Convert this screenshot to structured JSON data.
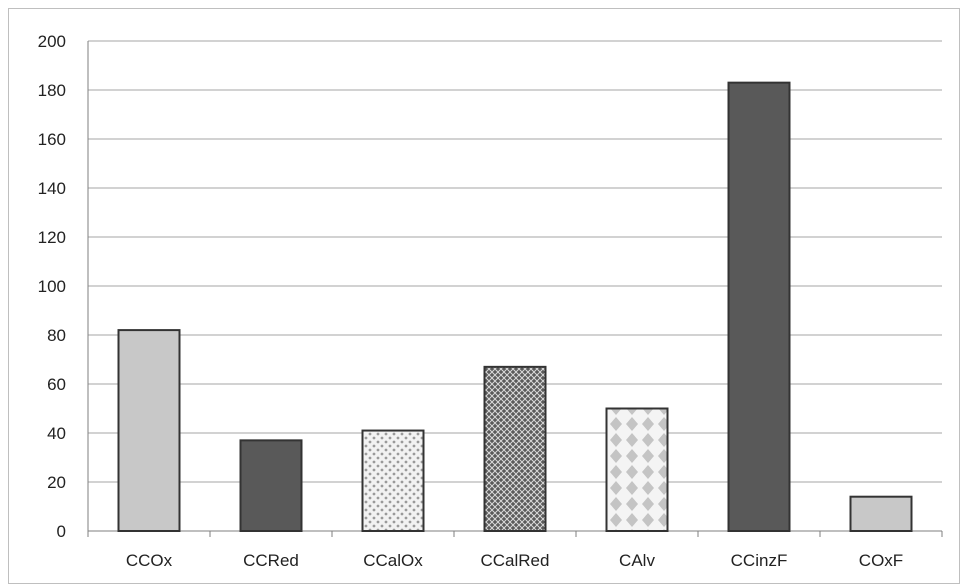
{
  "chart_data": {
    "type": "bar",
    "title": "",
    "xlabel": "",
    "ylabel": "",
    "categories": [
      "CCOx",
      "CCRed",
      "CCalOx",
      "CCalRed",
      "CAlv",
      "CCinzF",
      "COxF"
    ],
    "values": [
      82,
      37,
      41,
      67,
      50,
      183,
      14
    ],
    "ylim": [
      0,
      200
    ],
    "yticks": [
      0,
      20,
      40,
      60,
      80,
      100,
      120,
      140,
      160,
      180,
      200
    ],
    "grid": true,
    "legend": "none",
    "bar_styles": [
      "light-gray-solid",
      "dark-gray-solid",
      "light-dots",
      "dark-crosshatch",
      "light-diamonds",
      "dark-gray-solid",
      "light-gray-solid"
    ],
    "colors": {
      "light_gray": "#c8c8c8",
      "dark_gray": "#595959",
      "bar_outline": "#333333",
      "grid": "#a6a6a6",
      "axis": "#7f7f7f"
    }
  }
}
